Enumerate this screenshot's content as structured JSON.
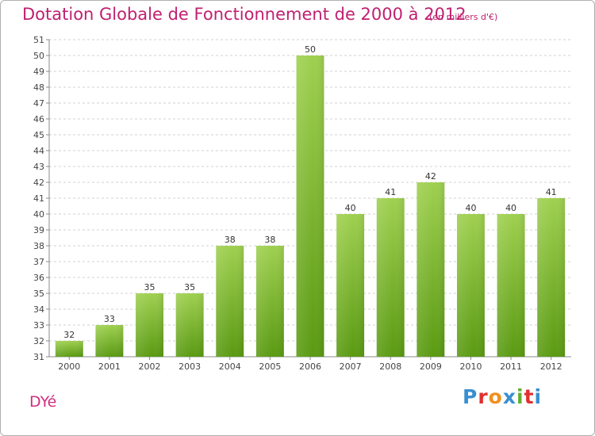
{
  "page": {
    "commune": "DYé",
    "logo_text": "Proxiti",
    "logo_colors": [
      "#3a8fd0",
      "#e03030",
      "#f09020",
      "#3a8fd0",
      "#60b030",
      "#e03030",
      "#3a8fd0"
    ]
  },
  "chart_data": {
    "type": "bar",
    "title": "Dotation Globale de Fonctionnement de 2000 à 2012",
    "subtitle": "(en milliers d'€)",
    "categories": [
      "2000",
      "2001",
      "2002",
      "2003",
      "2004",
      "2005",
      "2006",
      "2007",
      "2008",
      "2009",
      "2010",
      "2011",
      "2012"
    ],
    "values": [
      32,
      33,
      35,
      35,
      38,
      38,
      50,
      40,
      41,
      42,
      40,
      40,
      41
    ],
    "xlabel": "",
    "ylabel": "",
    "ylim": [
      31,
      51
    ],
    "yticks": [
      31,
      32,
      33,
      34,
      35,
      36,
      37,
      38,
      39,
      40,
      41,
      42,
      43,
      44,
      45,
      46,
      47,
      48,
      49,
      50,
      51
    ],
    "grid": "horizontal-dashed",
    "bar_color_top": "#9fd050",
    "bar_color_bottom": "#5a9a12"
  }
}
